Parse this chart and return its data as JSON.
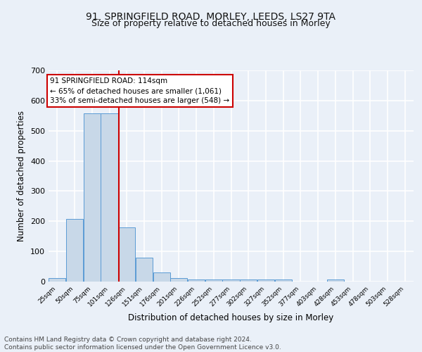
{
  "title1": "91, SPRINGFIELD ROAD, MORLEY, LEEDS, LS27 9TA",
  "title2": "Size of property relative to detached houses in Morley",
  "xlabel": "Distribution of detached houses by size in Morley",
  "ylabel": "Number of detached properties",
  "footer": "Contains HM Land Registry data © Crown copyright and database right 2024.\nContains public sector information licensed under the Open Government Licence v3.0.",
  "bin_labels": [
    "25sqm",
    "50sqm",
    "75sqm",
    "101sqm",
    "126sqm",
    "151sqm",
    "176sqm",
    "201sqm",
    "226sqm",
    "252sqm",
    "277sqm",
    "302sqm",
    "327sqm",
    "352sqm",
    "377sqm",
    "403sqm",
    "428sqm",
    "453sqm",
    "478sqm",
    "503sqm",
    "528sqm"
  ],
  "bin_edges": [
    12.5,
    37.5,
    62.5,
    87.5,
    112.5,
    137.5,
    162.5,
    187.5,
    212.5,
    237.5,
    262.5,
    287.5,
    312.5,
    337.5,
    362.5,
    387.5,
    412.5,
    437.5,
    462.5,
    487.5,
    512.5,
    537.5
  ],
  "counts": [
    11,
    207,
    557,
    557,
    180,
    80,
    30,
    11,
    7,
    7,
    7,
    7,
    6,
    6,
    0,
    0,
    6,
    0,
    0,
    0,
    0
  ],
  "bar_color": "#c8d8e8",
  "bar_edge_color": "#5b9bd5",
  "red_line_x": 114,
  "annotation_title": "91 SPRINGFIELD ROAD: 114sqm",
  "annotation_line1": "← 65% of detached houses are smaller (1,061)",
  "annotation_line2": "33% of semi-detached houses are larger (548) →",
  "annotation_box_color": "#ffffff",
  "annotation_border_color": "#cc0000",
  "ylim": [
    0,
    700
  ],
  "yticks": [
    0,
    100,
    200,
    300,
    400,
    500,
    600,
    700
  ],
  "bg_color": "#eaf0f8",
  "plot_bg_color": "#eaf0f8",
  "grid_color": "#ffffff",
  "title1_fontsize": 10,
  "title2_fontsize": 9,
  "xlabel_fontsize": 8.5,
  "ylabel_fontsize": 8.5,
  "footer_fontsize": 6.5
}
